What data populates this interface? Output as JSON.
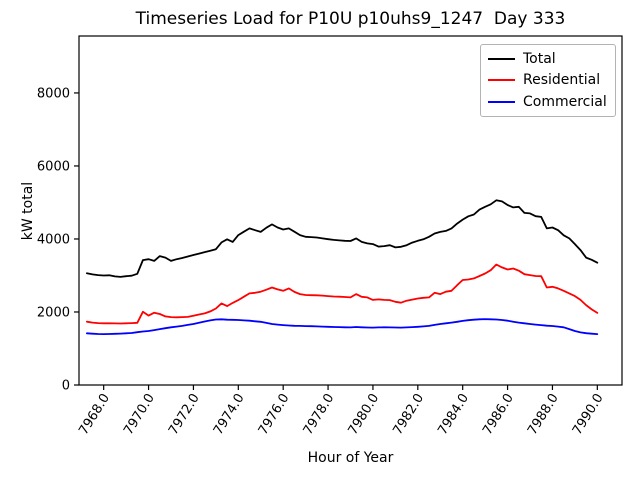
{
  "chart_data": {
    "type": "line",
    "title": "Timeseries Load for P10U p10uhs9_1247  Day 333",
    "xlabel": "Hour of Year",
    "ylabel": "kW total",
    "xlim": [
      7966.9,
      7991.1
    ],
    "ylim": [
      0,
      9560
    ],
    "xticks": [
      7968,
      7970,
      7972,
      7974,
      7976,
      7978,
      7980,
      7982,
      7984,
      7986,
      7988,
      7990
    ],
    "xtick_labels": [
      "7968.0",
      "7970.0",
      "7972.0",
      "7974.0",
      "7976.0",
      "7978.0",
      "7980.0",
      "7982.0",
      "7984.0",
      "7986.0",
      "7988.0",
      "7990.0"
    ],
    "yticks": [
      0,
      2000,
      4000,
      6000,
      8000
    ],
    "ytick_labels": [
      "0",
      "2000",
      "4000",
      "6000",
      "8000"
    ],
    "grid": false,
    "legend_position": "upper right",
    "x": [
      7967.25,
      7967.5,
      7967.75,
      7968,
      7968.25,
      7968.5,
      7968.75,
      7969,
      7969.25,
      7969.5,
      7969.75,
      7970,
      7970.25,
      7970.5,
      7970.75,
      7971,
      7971.25,
      7971.5,
      7971.75,
      7972,
      7972.25,
      7972.5,
      7972.75,
      7973,
      7973.25,
      7973.5,
      7973.75,
      7974,
      7974.25,
      7974.5,
      7974.75,
      7975,
      7975.25,
      7975.5,
      7975.75,
      7976,
      7976.25,
      7976.5,
      7976.75,
      7977,
      7977.25,
      7977.5,
      7977.75,
      7978,
      7978.25,
      7978.5,
      7978.75,
      7979,
      7979.25,
      7979.5,
      7979.75,
      7980,
      7980.25,
      7980.5,
      7980.75,
      7981,
      7981.25,
      7981.5,
      7981.75,
      7982,
      7982.25,
      7982.5,
      7982.75,
      7983,
      7983.25,
      7983.5,
      7983.75,
      7984,
      7984.25,
      7984.5,
      7984.75,
      7985,
      7985.25,
      7985.5,
      7985.75,
      7986,
      7986.25,
      7986.5,
      7986.75,
      7987,
      7987.25,
      7987.5,
      7987.75,
      7988,
      7988.25,
      7988.5,
      7988.75,
      7989,
      7989.25,
      7989.5,
      7989.75,
      7990
    ],
    "series": [
      {
        "name": "Total",
        "color": "#000000",
        "values": [
          3060,
          3030,
          3010,
          3000,
          3005,
          2975,
          2960,
          2980,
          2995,
          3045,
          3420,
          3445,
          3400,
          3530,
          3490,
          3400,
          3445,
          3480,
          3520,
          3560,
          3600,
          3640,
          3680,
          3720,
          3905,
          3990,
          3920,
          4105,
          4200,
          4290,
          4240,
          4195,
          4310,
          4400,
          4315,
          4260,
          4290,
          4200,
          4105,
          4060,
          4050,
          4040,
          4015,
          3995,
          3975,
          3960,
          3950,
          3945,
          4015,
          3920,
          3880,
          3860,
          3790,
          3805,
          3830,
          3770,
          3785,
          3830,
          3900,
          3950,
          3990,
          4060,
          4150,
          4195,
          4220,
          4290,
          4420,
          4530,
          4620,
          4670,
          4805,
          4880,
          4950,
          5060,
          5030,
          4930,
          4865,
          4880,
          4715,
          4700,
          4625,
          4605,
          4290,
          4315,
          4240,
          4100,
          4015,
          3860,
          3695,
          3490,
          3430,
          3350
        ]
      },
      {
        "name": "Residential",
        "color": "#ff0000",
        "values": [
          1735,
          1710,
          1695,
          1690,
          1690,
          1688,
          1685,
          1690,
          1695,
          1705,
          2005,
          1900,
          1980,
          1945,
          1880,
          1860,
          1855,
          1860,
          1865,
          1895,
          1930,
          1960,
          2015,
          2095,
          2235,
          2160,
          2250,
          2325,
          2420,
          2510,
          2525,
          2555,
          2610,
          2670,
          2620,
          2580,
          2645,
          2550,
          2490,
          2465,
          2460,
          2458,
          2450,
          2435,
          2425,
          2420,
          2410,
          2400,
          2490,
          2415,
          2400,
          2330,
          2345,
          2330,
          2325,
          2280,
          2255,
          2310,
          2340,
          2370,
          2390,
          2400,
          2525,
          2490,
          2555,
          2580,
          2735,
          2875,
          2890,
          2920,
          2985,
          3055,
          3145,
          3300,
          3220,
          3165,
          3190,
          3130,
          3035,
          3010,
          2985,
          2980,
          2670,
          2690,
          2645,
          2580,
          2510,
          2435,
          2330,
          2190,
          2070,
          1975
        ]
      },
      {
        "name": "Commercial",
        "color": "#0000ff",
        "values": [
          1415,
          1405,
          1398,
          1395,
          1398,
          1402,
          1408,
          1415,
          1425,
          1445,
          1465,
          1480,
          1505,
          1530,
          1555,
          1580,
          1600,
          1620,
          1645,
          1670,
          1705,
          1740,
          1770,
          1795,
          1800,
          1790,
          1785,
          1780,
          1770,
          1760,
          1745,
          1730,
          1700,
          1670,
          1655,
          1642,
          1630,
          1623,
          1618,
          1614,
          1610,
          1605,
          1600,
          1595,
          1590,
          1585,
          1580,
          1578,
          1590,
          1580,
          1575,
          1572,
          1578,
          1580,
          1578,
          1575,
          1572,
          1578,
          1585,
          1595,
          1605,
          1620,
          1645,
          1670,
          1690,
          1710,
          1730,
          1755,
          1775,
          1790,
          1800,
          1805,
          1800,
          1795,
          1780,
          1760,
          1735,
          1710,
          1690,
          1670,
          1655,
          1640,
          1625,
          1615,
          1600,
          1580,
          1530,
          1480,
          1440,
          1420,
          1405,
          1395
        ]
      }
    ]
  }
}
